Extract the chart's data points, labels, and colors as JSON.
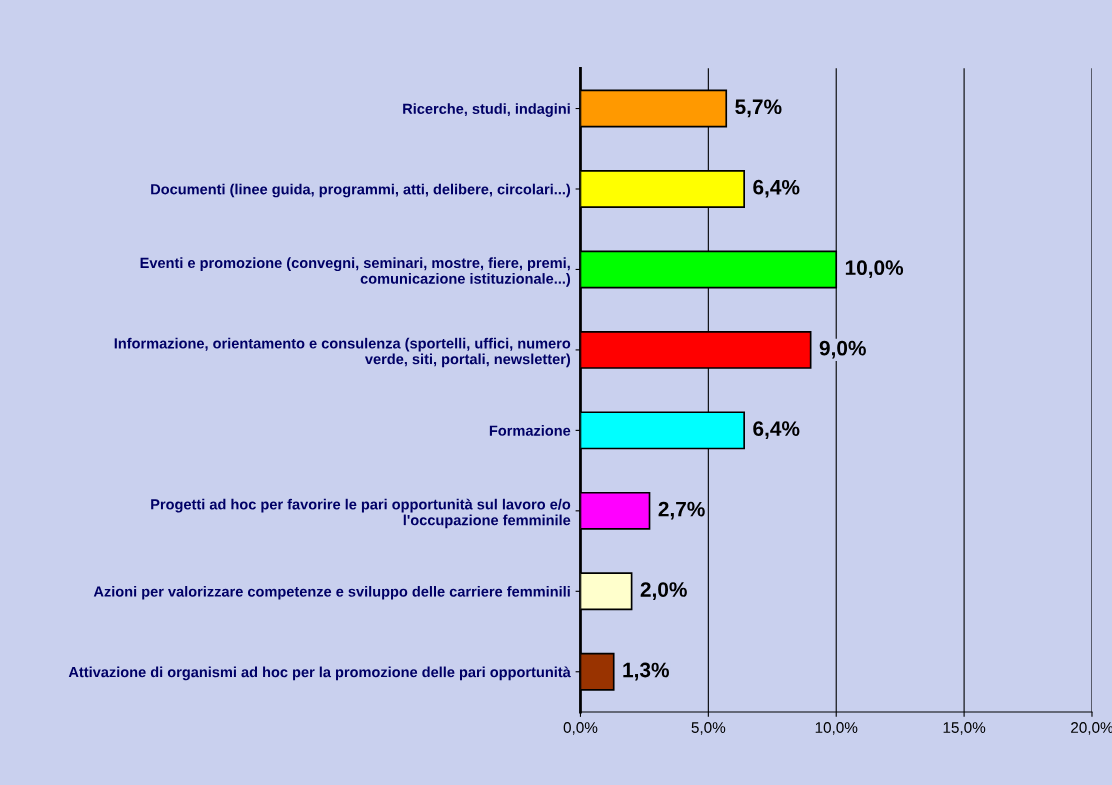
{
  "chart_data": {
    "type": "bar",
    "orientation": "horizontal",
    "categories": [
      "Ricerche, studi, indagini",
      "Documenti (linee guida, programmi, atti, delibere, circolari...)",
      "Eventi e promozione (convegni, seminari, mostre, fiere, premi, comunicazione istituzionale...)",
      "Informazione, orientamento e consulenza (sportelli, uffici, numero verde, siti, portali, newsletter)",
      "Formazione",
      "Progetti ad hoc per favorire le pari opportunità sul lavoro e/o l'occupazione femminile",
      "Azioni per valorizzare competenze e sviluppo delle carriere femminili",
      "Attivazione di organismi ad hoc per la promozione delle pari opportunità"
    ],
    "values": [
      5.7,
      6.4,
      10.0,
      9.0,
      6.4,
      2.7,
      2.0,
      1.3
    ],
    "colors": [
      "#ff9900",
      "#ffff00",
      "#00ff00",
      "#ff0000",
      "#00ffff",
      "#ff00ff",
      "#ffffcc",
      "#993300"
    ],
    "value_labels": [
      "5,7%",
      "6,4%",
      "10,0%",
      "9,0%",
      "6,4%",
      "2,7%",
      "2,0%",
      "1,3%"
    ],
    "xlim": [
      0,
      20
    ],
    "xticks": [
      {
        "value": 0,
        "label": "0,0%"
      },
      {
        "value": 5,
        "label": "5,0%"
      },
      {
        "value": 10,
        "label": "10,0%"
      },
      {
        "value": 15,
        "label": "15,0%"
      },
      {
        "value": 20,
        "label": "20,0%"
      }
    ],
    "grid": "x",
    "legend": false
  }
}
